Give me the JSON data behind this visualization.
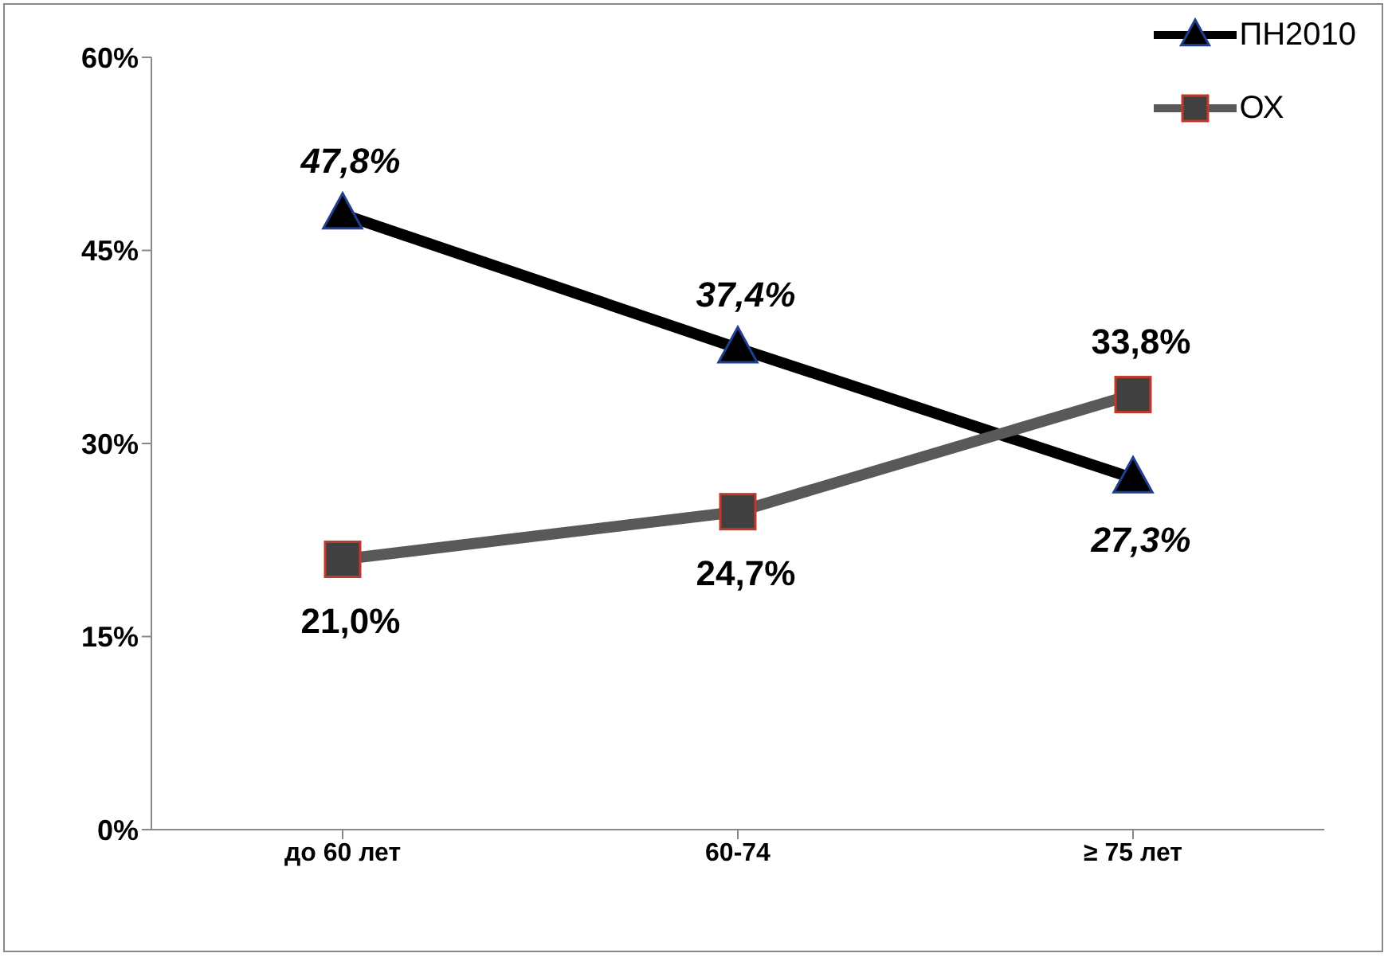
{
  "chart_data": {
    "type": "line",
    "categories": [
      "до 60 лет",
      "60-74",
      "≥ 75 лет"
    ],
    "series": [
      {
        "name": "ПН2010",
        "color": "#000000",
        "marker": "triangle",
        "values": [
          47.8,
          37.4,
          27.3
        ],
        "value_labels": [
          "47,8%",
          "37,4%",
          "27,3%"
        ]
      },
      {
        "name": "ОХ",
        "color": "#595959",
        "marker": "square",
        "values": [
          21.0,
          24.7,
          33.8
        ],
        "value_labels": [
          "21,0%",
          "24,7%",
          "33,8%"
        ]
      }
    ],
    "ylim": [
      0,
      60
    ],
    "yticks": [
      {
        "value": 0,
        "label": "0%"
      },
      {
        "value": 15,
        "label": "15%"
      },
      {
        "value": 30,
        "label": "30%"
      },
      {
        "value": 45,
        "label": "45%"
      },
      {
        "value": 60,
        "label": "60%"
      }
    ],
    "grid": false,
    "legend": "top right"
  }
}
